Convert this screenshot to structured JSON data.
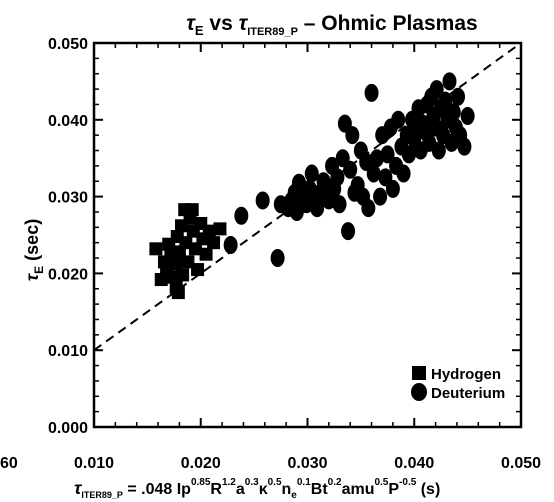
{
  "chart_data": {
    "type": "scatter",
    "title": {
      "tau": "τ",
      "sub_e": "E",
      "vs": " vs ",
      "tau2": "τ",
      "sub_iter": "ITER89_P",
      "rest": " – Ohmic Plasmas"
    },
    "ylabel": {
      "tau": "τ",
      "sub": "E",
      "unit": " (sec)"
    },
    "xlabel": {
      "tau": "τ",
      "sub": "ITER89_P",
      "eq": " = .048 ",
      "terms": [
        {
          "base": "Ip",
          "exp": "0.85"
        },
        {
          "base": "R",
          "exp": "1.2"
        },
        {
          "base": "a",
          "exp": "0.3"
        },
        {
          "base": "κ",
          "exp": "0.5"
        },
        {
          "base": "n",
          "sub": "e",
          "exp": "0.1"
        },
        {
          "base": "Bt",
          "exp": "0.2"
        },
        {
          "base": "amu",
          "exp": "0.5"
        },
        {
          "base": "P",
          "exp": "-0.5"
        }
      ],
      "unit": " (s)"
    },
    "xlim": [
      0.01,
      0.05
    ],
    "ylim": [
      0.0,
      0.05
    ],
    "xticks": [
      "0.010",
      "0.020",
      "0.030",
      "0.040",
      "0.050"
    ],
    "yticks": [
      "0.000",
      "0.010",
      "0.020",
      "0.030",
      "0.040",
      "0.050"
    ],
    "left_edge_fragment": "60",
    "reference_line": {
      "style": "dashed",
      "x": [
        0.01,
        0.05
      ],
      "y": [
        0.01,
        0.05
      ]
    },
    "legend_position": "bottom-right",
    "series": [
      {
        "name": "Hydrogen",
        "marker": "square",
        "color": "#000000",
        "points": [
          [
            0.0158,
            0.0232
          ],
          [
            0.0163,
            0.0192
          ],
          [
            0.0166,
            0.0215
          ],
          [
            0.0168,
            0.0205
          ],
          [
            0.017,
            0.0238
          ],
          [
            0.0172,
            0.0222
          ],
          [
            0.0173,
            0.0195
          ],
          [
            0.0176,
            0.0212
          ],
          [
            0.0177,
            0.0182
          ],
          [
            0.0178,
            0.0248
          ],
          [
            0.0179,
            0.0175
          ],
          [
            0.018,
            0.0228
          ],
          [
            0.0182,
            0.0262
          ],
          [
            0.0183,
            0.0198
          ],
          [
            0.0185,
            0.0283
          ],
          [
            0.0186,
            0.024
          ],
          [
            0.0188,
            0.0215
          ],
          [
            0.019,
            0.0272
          ],
          [
            0.0192,
            0.0283
          ],
          [
            0.0193,
            0.0255
          ],
          [
            0.0195,
            0.0232
          ],
          [
            0.0197,
            0.0205
          ],
          [
            0.02,
            0.0265
          ],
          [
            0.0202,
            0.0245
          ],
          [
            0.0205,
            0.0225
          ],
          [
            0.0208,
            0.0255
          ],
          [
            0.0212,
            0.024
          ],
          [
            0.0218,
            0.0258
          ]
        ]
      },
      {
        "name": "Deuterium",
        "marker": "circle",
        "color": "#000000",
        "points": [
          [
            0.0228,
            0.0237
          ],
          [
            0.0238,
            0.0275
          ],
          [
            0.0258,
            0.0295
          ],
          [
            0.0272,
            0.022
          ],
          [
            0.0275,
            0.029
          ],
          [
            0.0282,
            0.0285
          ],
          [
            0.0285,
            0.0295
          ],
          [
            0.0288,
            0.0305
          ],
          [
            0.029,
            0.028
          ],
          [
            0.0292,
            0.0318
          ],
          [
            0.0296,
            0.03
          ],
          [
            0.0299,
            0.029
          ],
          [
            0.0302,
            0.031
          ],
          [
            0.0304,
            0.033
          ],
          [
            0.0306,
            0.0295
          ],
          [
            0.0309,
            0.0285
          ],
          [
            0.0312,
            0.0305
          ],
          [
            0.0315,
            0.032
          ],
          [
            0.0318,
            0.03
          ],
          [
            0.032,
            0.0295
          ],
          [
            0.0323,
            0.034
          ],
          [
            0.0325,
            0.031
          ],
          [
            0.0328,
            0.0325
          ],
          [
            0.033,
            0.029
          ],
          [
            0.0333,
            0.035
          ],
          [
            0.0335,
            0.0395
          ],
          [
            0.0338,
            0.0255
          ],
          [
            0.034,
            0.0335
          ],
          [
            0.0342,
            0.038
          ],
          [
            0.0344,
            0.0305
          ],
          [
            0.0347,
            0.0315
          ],
          [
            0.035,
            0.036
          ],
          [
            0.0352,
            0.03
          ],
          [
            0.0355,
            0.0345
          ],
          [
            0.0357,
            0.0285
          ],
          [
            0.036,
            0.0435
          ],
          [
            0.0362,
            0.033
          ],
          [
            0.0365,
            0.035
          ],
          [
            0.0368,
            0.03
          ],
          [
            0.037,
            0.038
          ],
          [
            0.0373,
            0.0325
          ],
          [
            0.0375,
            0.0355
          ],
          [
            0.0378,
            0.039
          ],
          [
            0.038,
            0.031
          ],
          [
            0.0383,
            0.034
          ],
          [
            0.0385,
            0.04
          ],
          [
            0.0388,
            0.0365
          ],
          [
            0.039,
            0.033
          ],
          [
            0.0393,
            0.038
          ],
          [
            0.0395,
            0.0355
          ],
          [
            0.0398,
            0.04
          ],
          [
            0.04,
            0.0375
          ],
          [
            0.0402,
            0.039
          ],
          [
            0.0404,
            0.0415
          ],
          [
            0.0406,
            0.036
          ],
          [
            0.0408,
            0.0395
          ],
          [
            0.041,
            0.0385
          ],
          [
            0.0412,
            0.042
          ],
          [
            0.0414,
            0.037
          ],
          [
            0.0416,
            0.043
          ],
          [
            0.0418,
            0.0405
          ],
          [
            0.042,
            0.039
          ],
          [
            0.0421,
            0.044
          ],
          [
            0.0423,
            0.036
          ],
          [
            0.0425,
            0.0415
          ],
          [
            0.0427,
            0.038
          ],
          [
            0.0429,
            0.0425
          ],
          [
            0.0431,
            0.04
          ],
          [
            0.0433,
            0.045
          ],
          [
            0.0435,
            0.037
          ],
          [
            0.0437,
            0.041
          ],
          [
            0.0439,
            0.039
          ],
          [
            0.0441,
            0.043
          ],
          [
            0.0443,
            0.038
          ],
          [
            0.0447,
            0.0365
          ],
          [
            0.045,
            0.0405
          ]
        ]
      }
    ]
  }
}
